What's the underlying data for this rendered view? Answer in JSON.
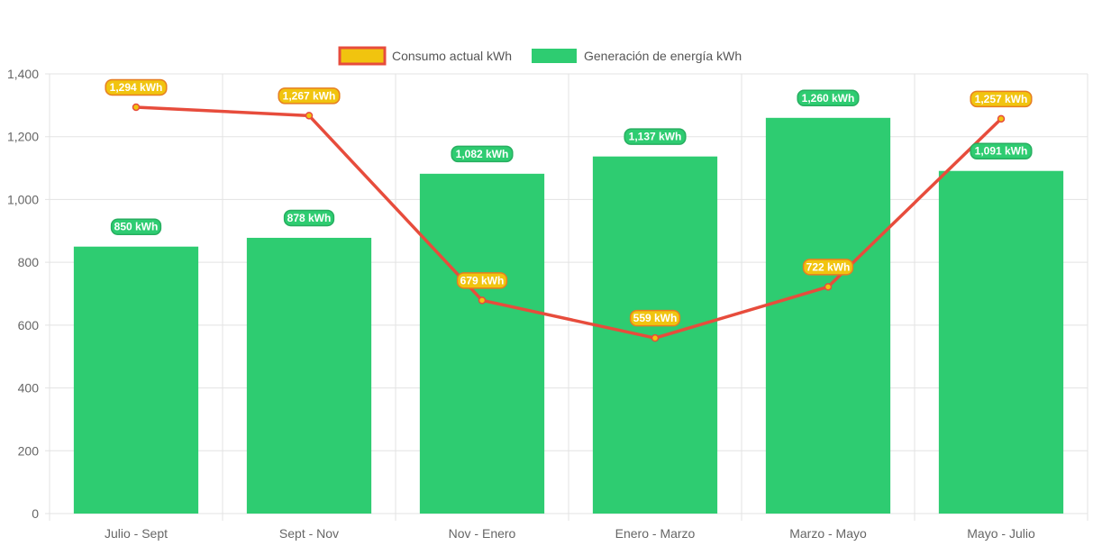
{
  "chart_data": {
    "type": "bar",
    "categories": [
      "Julio - Sept",
      "Sept - Nov",
      "Nov - Enero",
      "Enero - Marzo",
      "Marzo - Mayo",
      "Mayo - Julio"
    ],
    "series": [
      {
        "name": "Consumo actual kWh",
        "type": "line",
        "values": [
          1294,
          1267,
          679,
          559,
          722,
          1257
        ],
        "labels": [
          "1,294 kWh",
          "1,267 kWh",
          "679 kWh",
          "559 kWh",
          "722 kWh",
          "1,257 kWh"
        ],
        "line_color": "#e74c3c",
        "fill_color": "#f1c40f"
      },
      {
        "name": "Generación de energía kWh",
        "type": "bar",
        "values": [
          850,
          878,
          1082,
          1137,
          1260,
          1091
        ],
        "labels": [
          "850 kWh",
          "878 kWh",
          "1,082 kWh",
          "1,137 kWh",
          "1,260 kWh",
          "1,091 kWh"
        ],
        "color": "#2ecc71"
      }
    ],
    "yticks": [
      "0",
      "200",
      "400",
      "600",
      "800",
      "1,000",
      "1,200",
      "1,400"
    ],
    "ylim": [
      0,
      1400
    ],
    "grid": true,
    "legend_position": "top"
  }
}
